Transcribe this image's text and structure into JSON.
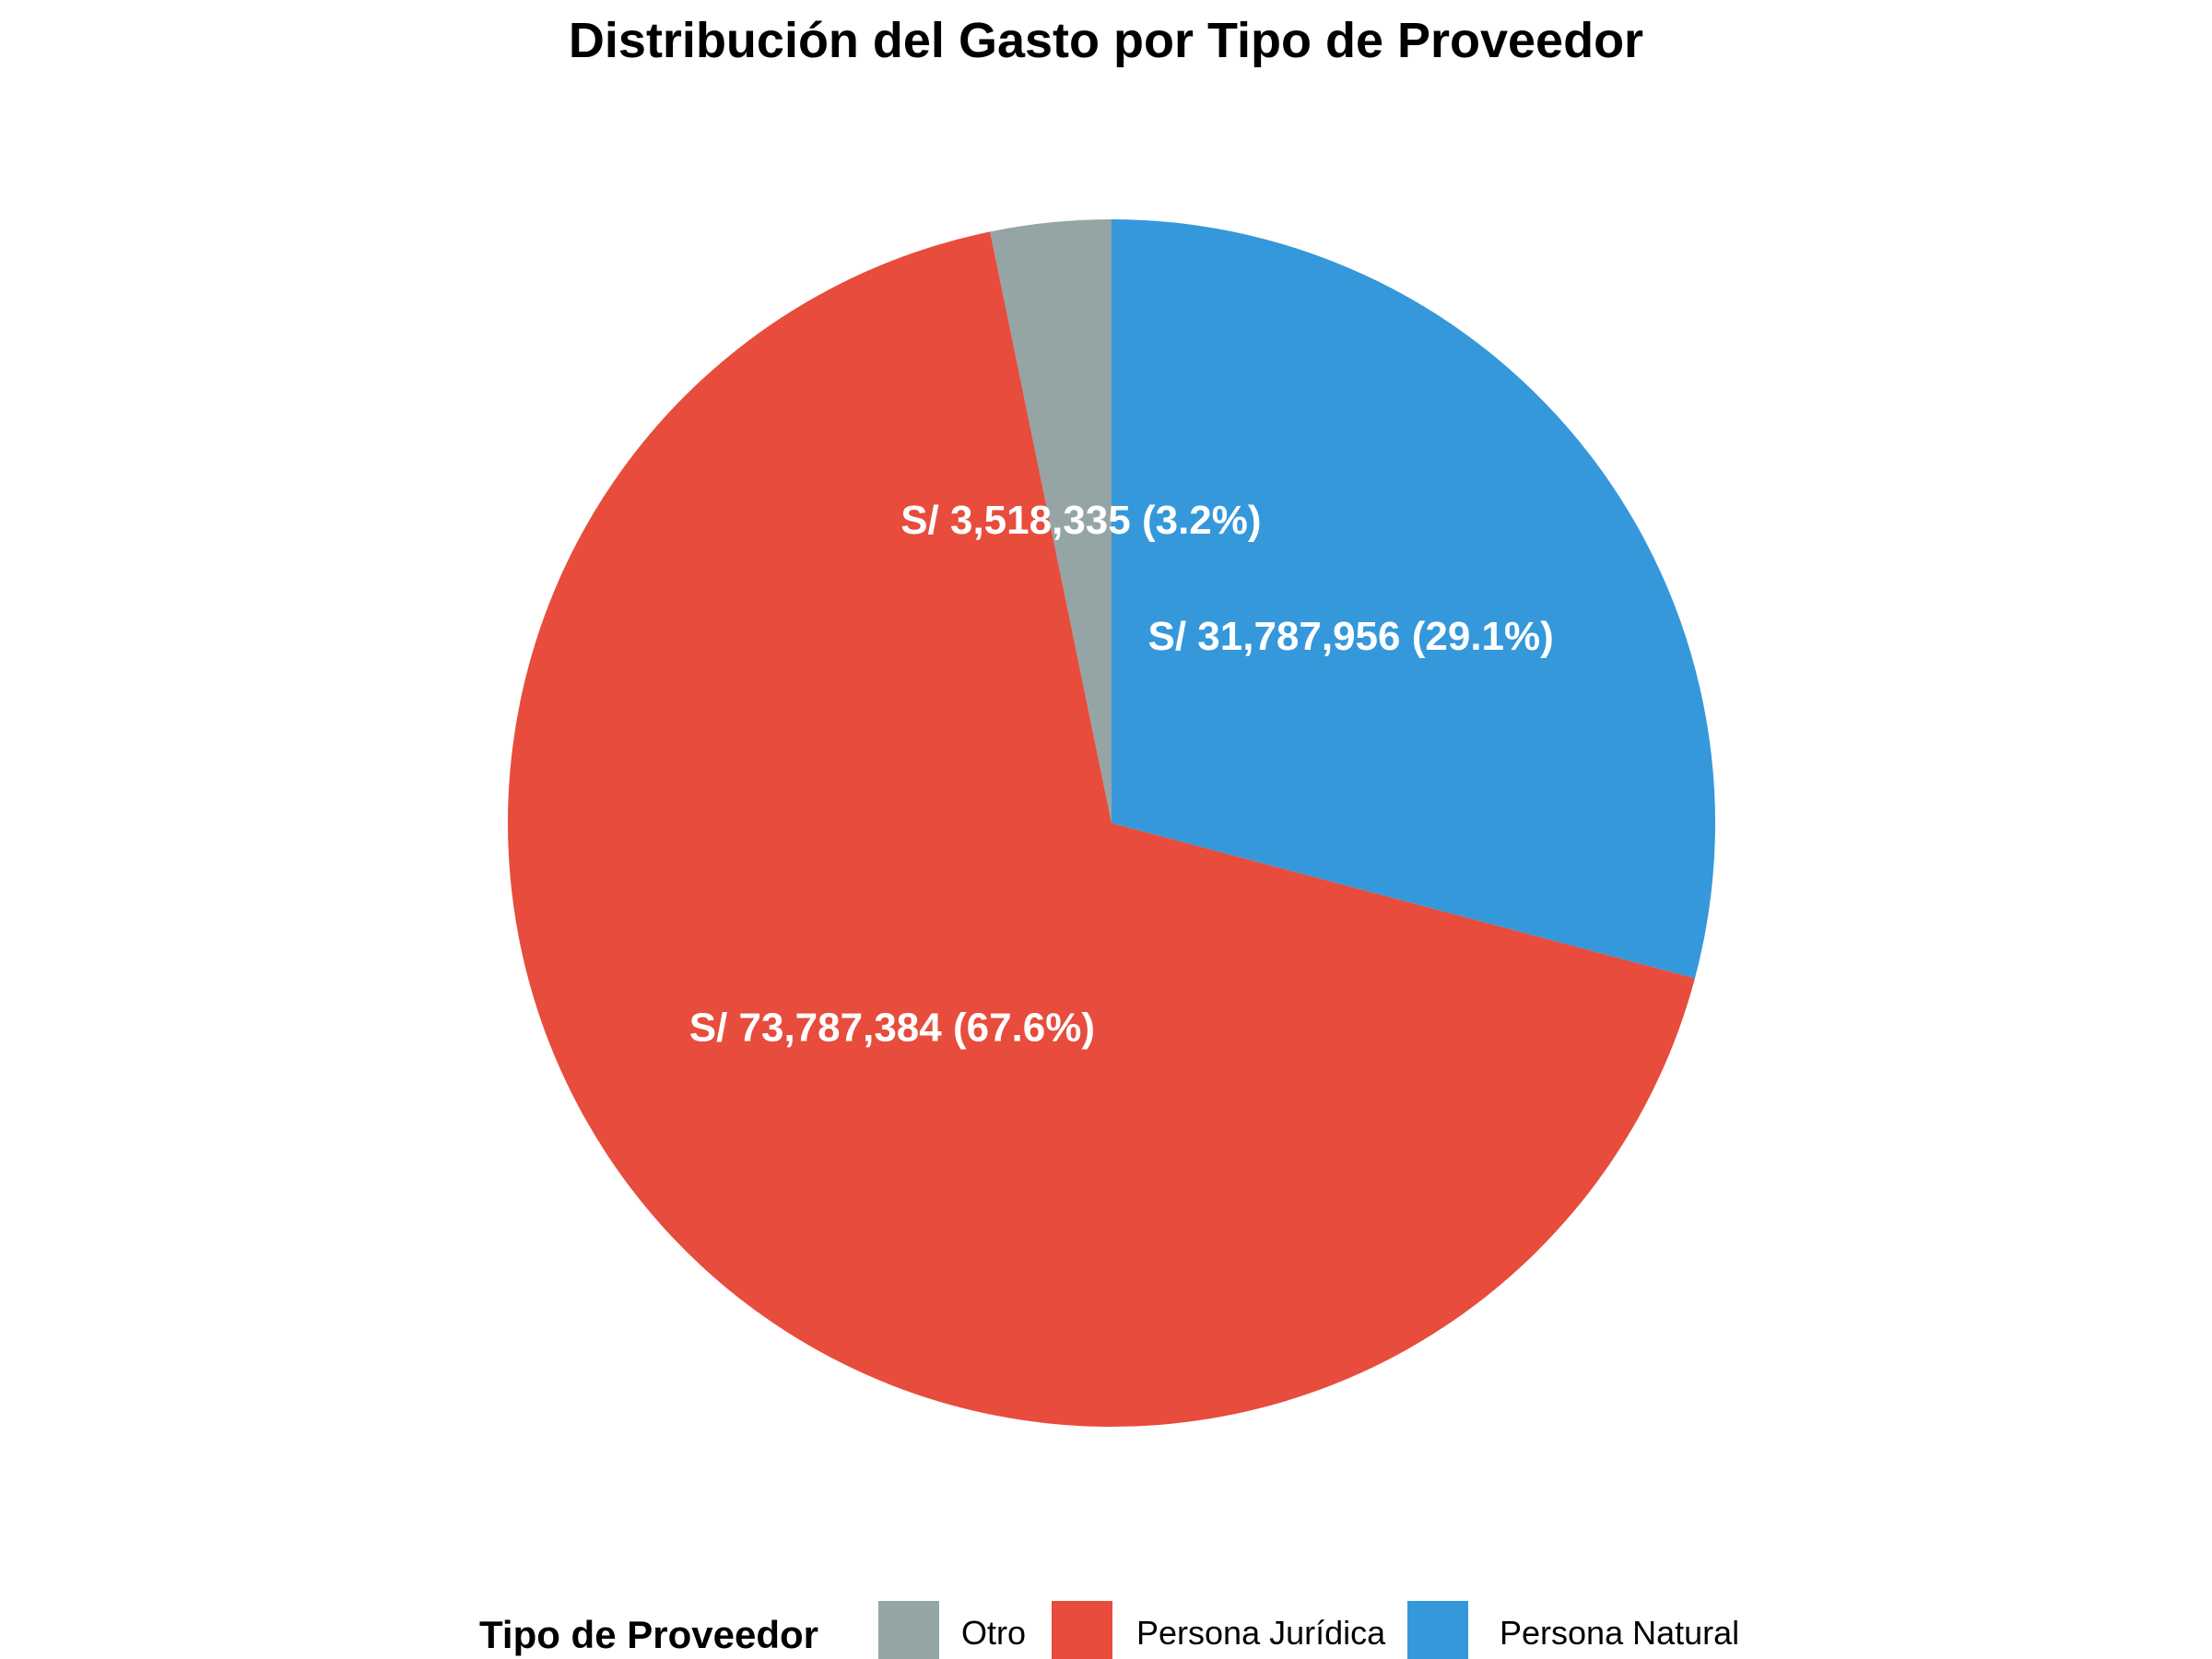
{
  "chart_data": {
    "type": "pie",
    "title": "Distribución del Gasto por Tipo de Proveedor",
    "legend_title": "Tipo de Proveedor",
    "legend_position": "bottom",
    "start_angle_deg": 0,
    "direction": "counterclockwise",
    "slices": [
      {
        "name": "Otro",
        "value": 3518335,
        "percent": 3.2,
        "label": "S/ 3,518,335 (3.2%)",
        "color": "#95A5A6"
      },
      {
        "name": "Persona Jurídica",
        "value": 73787384,
        "percent": 67.6,
        "label": "S/ 73,787,384 (67.6%)",
        "color": "#E74C3C"
      },
      {
        "name": "Persona Natural",
        "value": 31787956,
        "percent": 29.1,
        "label": "S/ 31,787,956 (29.1%)",
        "color": "#3498DB"
      }
    ]
  }
}
